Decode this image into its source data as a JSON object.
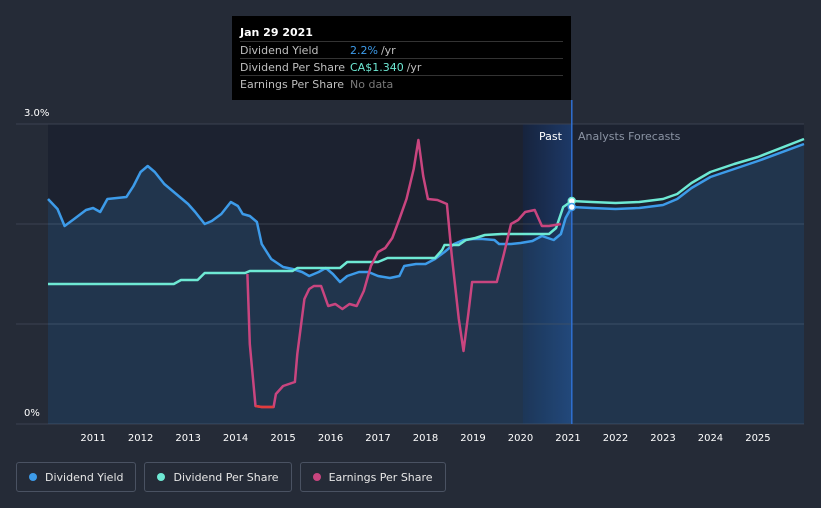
{
  "tooltip": {
    "date": "Jan 29 2021",
    "rows": [
      {
        "label": "Dividend Yield",
        "value": "2.2%",
        "unit": "/yr",
        "color": "#3d9be9"
      },
      {
        "label": "Dividend Per Share",
        "value": "CA$1.340",
        "unit": "/yr",
        "color": "#6ee9d4"
      },
      {
        "label": "Earnings Per Share",
        "value": "No data",
        "unit": "",
        "color": "#7a7a7a"
      }
    ]
  },
  "labels": {
    "past": "Past",
    "forecast": "Analysts Forecasts"
  },
  "legend": [
    {
      "label": "Dividend Yield",
      "color": "#3d9be9"
    },
    {
      "label": "Dividend Per Share",
      "color": "#6ee9d4"
    },
    {
      "label": "Earnings Per Share",
      "color": "#c9457f"
    }
  ],
  "chart_data": {
    "type": "line",
    "xlim": [
      2010.05,
      2025.97
    ],
    "ylim": [
      0,
      3.0
    ],
    "y_tick_labels": [
      "3.0%",
      "0%"
    ],
    "x_ticks": [
      2011,
      2012,
      2013,
      2014,
      2015,
      2016,
      2017,
      2018,
      2019,
      2020,
      2021,
      2022,
      2023,
      2024,
      2025
    ],
    "grid": true,
    "past_region": [
      2020.05,
      2021.08
    ],
    "marker_x": 2021.08,
    "series": [
      {
        "name": "Dividend Yield",
        "color": "#3d9be9",
        "area": true,
        "points": [
          [
            2010.05,
            2.25
          ],
          [
            2010.25,
            2.15
          ],
          [
            2010.4,
            1.98
          ],
          [
            2010.6,
            2.05
          ],
          [
            2010.85,
            2.14
          ],
          [
            2011.0,
            2.16
          ],
          [
            2011.15,
            2.12
          ],
          [
            2011.3,
            2.25
          ],
          [
            2011.5,
            2.26
          ],
          [
            2011.7,
            2.27
          ],
          [
            2011.85,
            2.38
          ],
          [
            2012.0,
            2.52
          ],
          [
            2012.15,
            2.58
          ],
          [
            2012.3,
            2.52
          ],
          [
            2012.5,
            2.4
          ],
          [
            2012.75,
            2.3
          ],
          [
            2013.0,
            2.2
          ],
          [
            2013.15,
            2.12
          ],
          [
            2013.35,
            2.0
          ],
          [
            2013.5,
            2.03
          ],
          [
            2013.7,
            2.1
          ],
          [
            2013.9,
            2.22
          ],
          [
            2014.05,
            2.18
          ],
          [
            2014.15,
            2.1
          ],
          [
            2014.3,
            2.08
          ],
          [
            2014.45,
            2.02
          ],
          [
            2014.55,
            1.8
          ],
          [
            2014.75,
            1.65
          ],
          [
            2015.0,
            1.57
          ],
          [
            2015.2,
            1.55
          ],
          [
            2015.4,
            1.52
          ],
          [
            2015.55,
            1.48
          ],
          [
            2015.75,
            1.52
          ],
          [
            2015.9,
            1.56
          ],
          [
            2016.05,
            1.5
          ],
          [
            2016.2,
            1.42
          ],
          [
            2016.35,
            1.48
          ],
          [
            2016.6,
            1.52
          ],
          [
            2016.8,
            1.52
          ],
          [
            2017.0,
            1.48
          ],
          [
            2017.25,
            1.46
          ],
          [
            2017.45,
            1.48
          ],
          [
            2017.55,
            1.58
          ],
          [
            2017.8,
            1.6
          ],
          [
            2018.0,
            1.6
          ],
          [
            2018.2,
            1.65
          ],
          [
            2018.4,
            1.72
          ],
          [
            2018.6,
            1.8
          ],
          [
            2018.8,
            1.84
          ],
          [
            2019.0,
            1.85
          ],
          [
            2019.2,
            1.85
          ],
          [
            2019.45,
            1.84
          ],
          [
            2019.55,
            1.8
          ],
          [
            2019.8,
            1.8
          ],
          [
            2020.0,
            1.81
          ],
          [
            2020.25,
            1.83
          ],
          [
            2020.45,
            1.88
          ],
          [
            2020.7,
            1.84
          ],
          [
            2020.85,
            1.9
          ],
          [
            2020.95,
            2.06
          ],
          [
            2021.08,
            2.17
          ],
          [
            2021.5,
            2.16
          ],
          [
            2022.0,
            2.15
          ],
          [
            2022.5,
            2.16
          ],
          [
            2023.0,
            2.19
          ],
          [
            2023.3,
            2.25
          ],
          [
            2023.6,
            2.36
          ],
          [
            2024.0,
            2.47
          ],
          [
            2024.5,
            2.55
          ],
          [
            2025.0,
            2.63
          ],
          [
            2025.97,
            2.8
          ]
        ]
      },
      {
        "name": "Dividend Per Share",
        "color": "#6ee9d4",
        "area": false,
        "points": [
          [
            2010.05,
            1.4
          ],
          [
            2011.0,
            1.4
          ],
          [
            2012.0,
            1.4
          ],
          [
            2012.7,
            1.4
          ],
          [
            2012.85,
            1.44
          ],
          [
            2013.2,
            1.44
          ],
          [
            2013.35,
            1.51
          ],
          [
            2014.0,
            1.51
          ],
          [
            2014.2,
            1.51
          ],
          [
            2014.3,
            1.53
          ],
          [
            2015.2,
            1.53
          ],
          [
            2015.3,
            1.56
          ],
          [
            2016.2,
            1.56
          ],
          [
            2016.35,
            1.62
          ],
          [
            2017.0,
            1.62
          ],
          [
            2017.2,
            1.66
          ],
          [
            2017.9,
            1.66
          ],
          [
            2018.2,
            1.66
          ],
          [
            2018.35,
            1.74
          ],
          [
            2018.4,
            1.79
          ],
          [
            2018.7,
            1.79
          ],
          [
            2018.85,
            1.84
          ],
          [
            2019.05,
            1.86
          ],
          [
            2019.25,
            1.89
          ],
          [
            2019.6,
            1.9
          ],
          [
            2020.0,
            1.9
          ],
          [
            2020.6,
            1.9
          ],
          [
            2020.75,
            1.96
          ],
          [
            2020.9,
            2.17
          ],
          [
            2021.08,
            2.23
          ],
          [
            2021.5,
            2.22
          ],
          [
            2022.0,
            2.21
          ],
          [
            2022.5,
            2.22
          ],
          [
            2023.0,
            2.25
          ],
          [
            2023.3,
            2.3
          ],
          [
            2023.6,
            2.41
          ],
          [
            2024.0,
            2.52
          ],
          [
            2024.5,
            2.6
          ],
          [
            2025.0,
            2.67
          ],
          [
            2025.97,
            2.85
          ]
        ]
      },
      {
        "name": "Earnings Per Share",
        "color": "#c9457f",
        "area": false,
        "segments": [
          [
            [
              2014.25,
              1.5
            ],
            [
              2014.3,
              0.8
            ],
            [
              2014.42,
              0.18
            ],
            [
              2014.55,
              0.17
            ],
            [
              2014.8,
              0.17
            ],
            [
              2014.85,
              0.3
            ],
            [
              2015.0,
              0.38
            ],
            [
              2015.25,
              0.42
            ],
            [
              2015.3,
              0.7
            ],
            [
              2015.45,
              1.25
            ],
            [
              2015.55,
              1.35
            ],
            [
              2015.65,
              1.38
            ],
            [
              2015.8,
              1.38
            ],
            [
              2015.95,
              1.18
            ],
            [
              2016.1,
              1.2
            ],
            [
              2016.25,
              1.15
            ],
            [
              2016.4,
              1.2
            ],
            [
              2016.55,
              1.18
            ],
            [
              2016.7,
              1.33
            ],
            [
              2016.85,
              1.58
            ],
            [
              2017.0,
              1.72
            ],
            [
              2017.15,
              1.76
            ],
            [
              2017.3,
              1.86
            ],
            [
              2017.45,
              2.05
            ],
            [
              2017.6,
              2.25
            ],
            [
              2017.75,
              2.55
            ],
            [
              2017.85,
              2.84
            ],
            [
              2017.95,
              2.48
            ],
            [
              2018.05,
              2.25
            ],
            [
              2018.25,
              2.24
            ],
            [
              2018.45,
              2.2
            ],
            [
              2018.55,
              1.7
            ],
            [
              2018.7,
              1.05
            ],
            [
              2018.8,
              0.73
            ],
            [
              2018.9,
              1.1
            ],
            [
              2018.98,
              1.42
            ],
            [
              2019.1,
              1.42
            ],
            [
              2019.3,
              1.42
            ],
            [
              2019.5,
              1.42
            ],
            [
              2019.65,
              1.7
            ],
            [
              2019.8,
              2.0
            ],
            [
              2019.95,
              2.04
            ],
            [
              2020.1,
              2.12
            ],
            [
              2020.3,
              2.14
            ],
            [
              2020.45,
              1.98
            ],
            [
              2020.6,
              1.98
            ],
            [
              2020.85,
              2.0
            ]
          ]
        ]
      }
    ]
  }
}
